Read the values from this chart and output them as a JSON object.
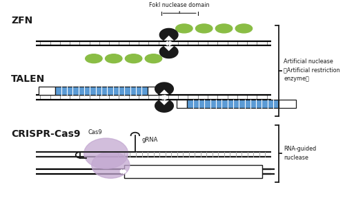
{
  "fig_width": 5.0,
  "fig_height": 3.2,
  "dpi": 100,
  "bg_color": "#ffffff",
  "green_color": "#8abd45",
  "blue_color": "#5b9bd5",
  "black_color": "#1a1a1a",
  "purple_color": "#c3a8d1",
  "label_ZFN": "ZFN",
  "label_TALEN": "TALEN",
  "label_CRISPR": "CRISPR-Cas9",
  "label_fokI": "FokI nuclease domain",
  "label_cas9": "Cas9",
  "label_gRNA": "gRNA",
  "label_art_nuc": "Artificial nuclease\n（Artificial restriction\nenzyme）",
  "label_rna": "RNA-guided\nnuclease",
  "xlim": [
    0,
    10
  ],
  "ylim": [
    0,
    10
  ]
}
